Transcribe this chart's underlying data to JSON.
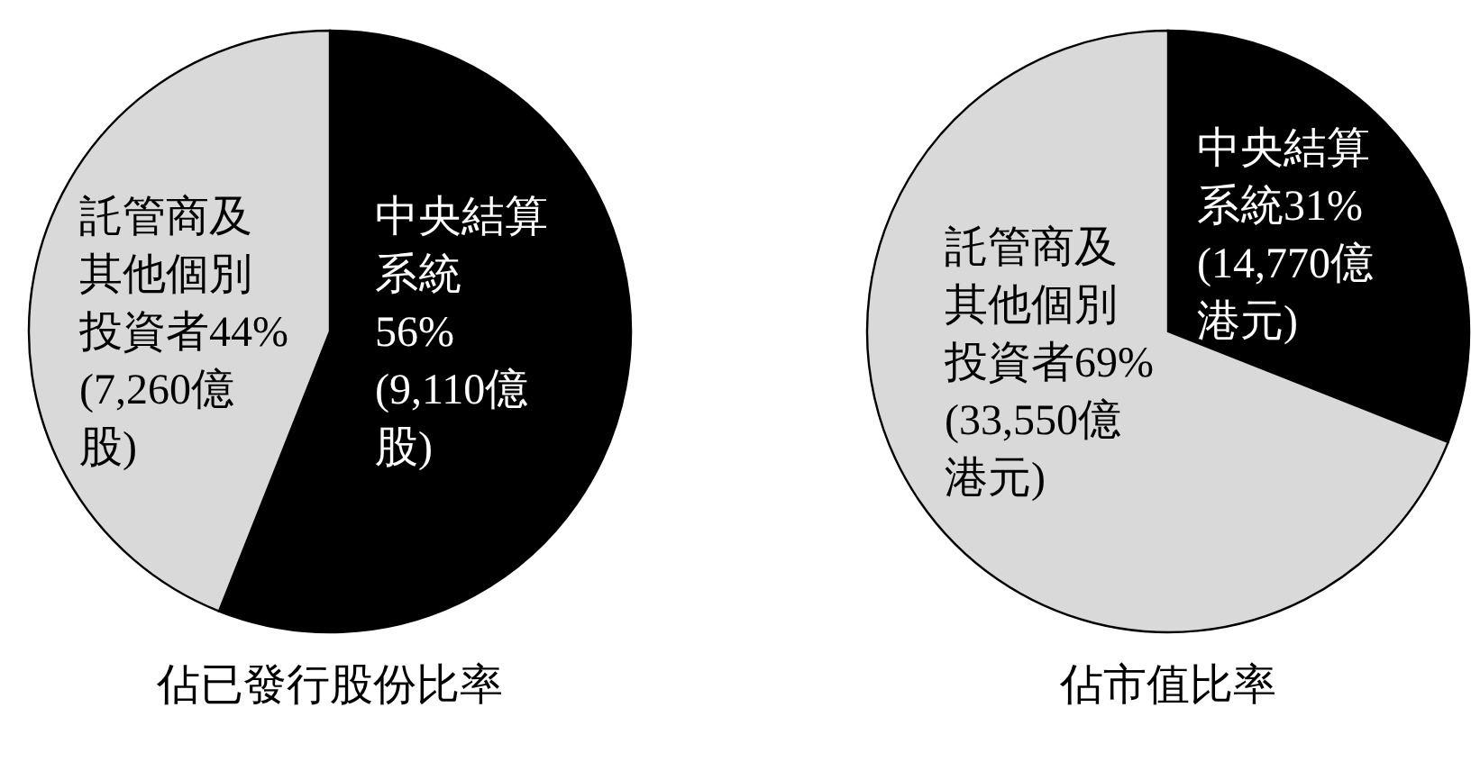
{
  "chart_data": [
    {
      "type": "pie",
      "title": "佔已發行股份比率",
      "categories": [
        "中央結算系統",
        "託管商及其他個別投資者"
      ],
      "values": [
        56,
        44
      ],
      "colors": [
        "#000000",
        "#d9d9d9"
      ],
      "value_labels": [
        "56%(9,110億股)",
        "44%(7,260億股)"
      ]
    },
    {
      "type": "pie",
      "title": "佔市值比率",
      "categories": [
        "中央結算系統",
        "託管商及其他個別投資者"
      ],
      "values": [
        31,
        69
      ],
      "colors": [
        "#000000",
        "#d9d9d9"
      ],
      "value_labels": [
        "31%(14,770億港元)",
        "69%(33,550億港元)"
      ]
    }
  ]
}
